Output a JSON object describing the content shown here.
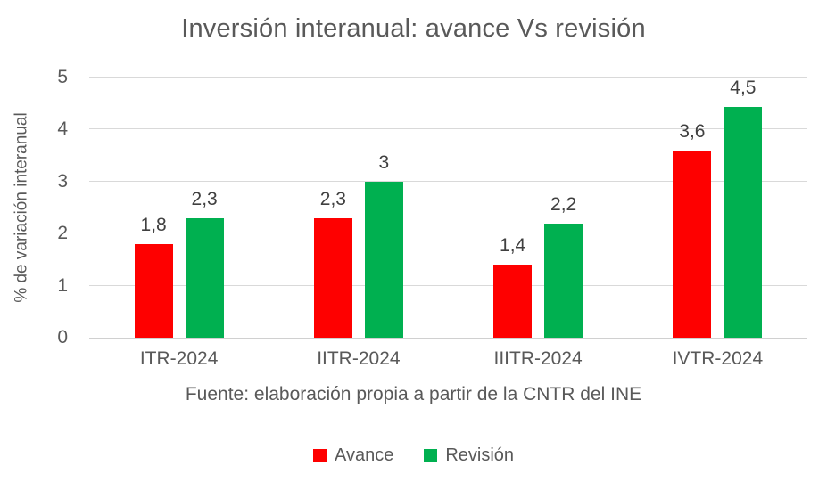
{
  "chart_data": {
    "type": "bar",
    "title": "Inversión interanual: avance Vs revisión",
    "ylabel": "% de variación interanual",
    "xlabel": "Fuente: elaboración propia a partir de la CNTR del INE",
    "categories": [
      "ITR-2024",
      "IITR-2024",
      "IIITR-2024",
      "IVTR-2024"
    ],
    "series": [
      {
        "name": "Avance",
        "color": "#fe0000",
        "values": [
          1.8,
          2.3,
          1.4,
          3.6
        ],
        "labels": [
          "1,8",
          "2,3",
          "1,4",
          "3,6"
        ]
      },
      {
        "name": "Revisión",
        "color": "#00b050",
        "values": [
          2.3,
          3,
          2.2,
          4.5
        ],
        "labels": [
          "2,3",
          "3",
          "2,2",
          "4,5"
        ]
      }
    ],
    "ylim": [
      0,
      5
    ],
    "yticks": [
      0,
      1,
      2,
      3,
      4,
      5
    ],
    "grid": true,
    "legend_position": "bottom",
    "colors": {
      "title_text": "#595959",
      "axis_text": "#595959",
      "data_label_text": "#404040",
      "gridline": "#d9d9d9",
      "background": "#ffffff"
    }
  }
}
